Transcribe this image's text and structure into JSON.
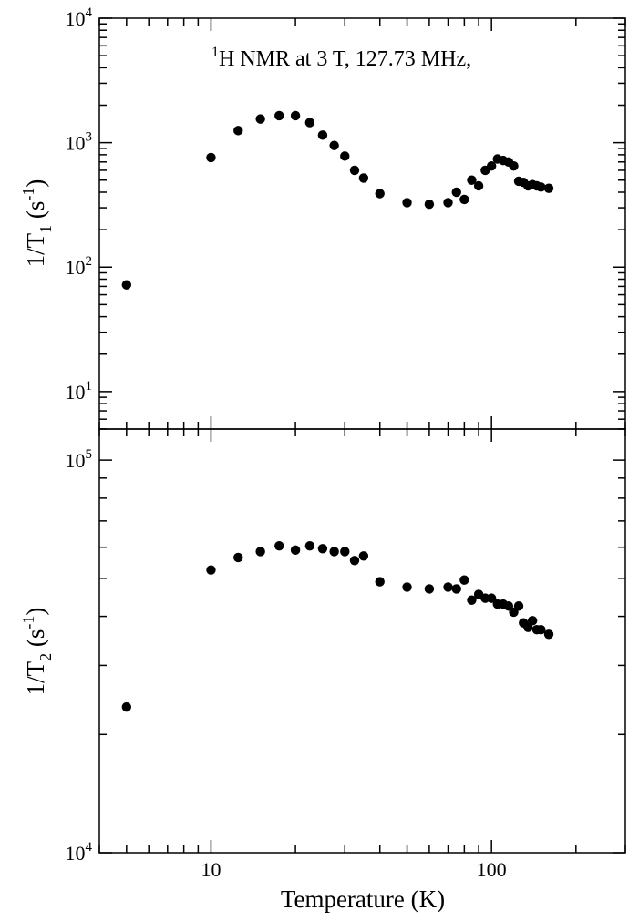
{
  "chart_data": [
    {
      "type": "scatter",
      "panel": "top",
      "annotation": {
        "sup": "1",
        "text": "H NMR at 3 T, 127.73 MHz,"
      },
      "ylabel": {
        "base": "1/T",
        "sub": "1",
        "open": " (s",
        "sup": "-1",
        "close": ")"
      },
      "xscale": "log",
      "yscale": "log",
      "xlim": [
        4,
        300
      ],
      "ylim": [
        5,
        10000
      ],
      "yticks": [
        {
          "value": 10,
          "base": "10",
          "exp": "1"
        },
        {
          "value": 100,
          "base": "10",
          "exp": "2"
        },
        {
          "value": 1000,
          "base": "10",
          "exp": "3"
        },
        {
          "value": 10000,
          "base": "10",
          "exp": "4"
        }
      ],
      "grid": false,
      "x": [
        5,
        10,
        12.5,
        15,
        17.5,
        20,
        22.5,
        25,
        27.5,
        30,
        32.5,
        35,
        40,
        50,
        60,
        70,
        75,
        80,
        85,
        90,
        95,
        100,
        105,
        110,
        115,
        120,
        125,
        130,
        135,
        140,
        145,
        150,
        160
      ],
      "y": [
        72,
        760,
        1250,
        1550,
        1650,
        1650,
        1450,
        1150,
        950,
        780,
        600,
        520,
        390,
        330,
        320,
        330,
        400,
        350,
        500,
        450,
        600,
        650,
        740,
        720,
        700,
        650,
        490,
        480,
        450,
        460,
        450,
        440,
        430
      ]
    },
    {
      "type": "scatter",
      "panel": "bottom",
      "xlabel": "Temperature (K)",
      "ylabel": {
        "base": "1/T",
        "sub": "2",
        "open": " (s",
        "sup": "-1",
        "close": ")"
      },
      "xscale": "log",
      "yscale": "log",
      "xlim": [
        4,
        300
      ],
      "ylim": [
        10000,
        120000
      ],
      "xticks": [
        {
          "value": 10,
          "label": "10"
        },
        {
          "value": 100,
          "label": "100"
        }
      ],
      "yticks": [
        {
          "value": 10000,
          "base": "10",
          "exp": "4"
        },
        {
          "value": 100000,
          "base": "10",
          "exp": "5"
        }
      ],
      "grid": false,
      "x": [
        5,
        10,
        12.5,
        15,
        17.5,
        20,
        22.5,
        25,
        27.5,
        30,
        32.5,
        35,
        40,
        50,
        60,
        70,
        75,
        80,
        85,
        90,
        95,
        100,
        105,
        110,
        115,
        120,
        125,
        130,
        135,
        140,
        145,
        150,
        160
      ],
      "y": [
        23500,
        52500,
        56500,
        58500,
        60500,
        59000,
        60500,
        59500,
        58500,
        58500,
        55500,
        57000,
        49000,
        47500,
        47000,
        47500,
        47000,
        49500,
        44000,
        45500,
        44500,
        44500,
        43000,
        43000,
        42500,
        41000,
        42500,
        38500,
        37500,
        39000,
        37000,
        37000,
        36000
      ]
    }
  ]
}
